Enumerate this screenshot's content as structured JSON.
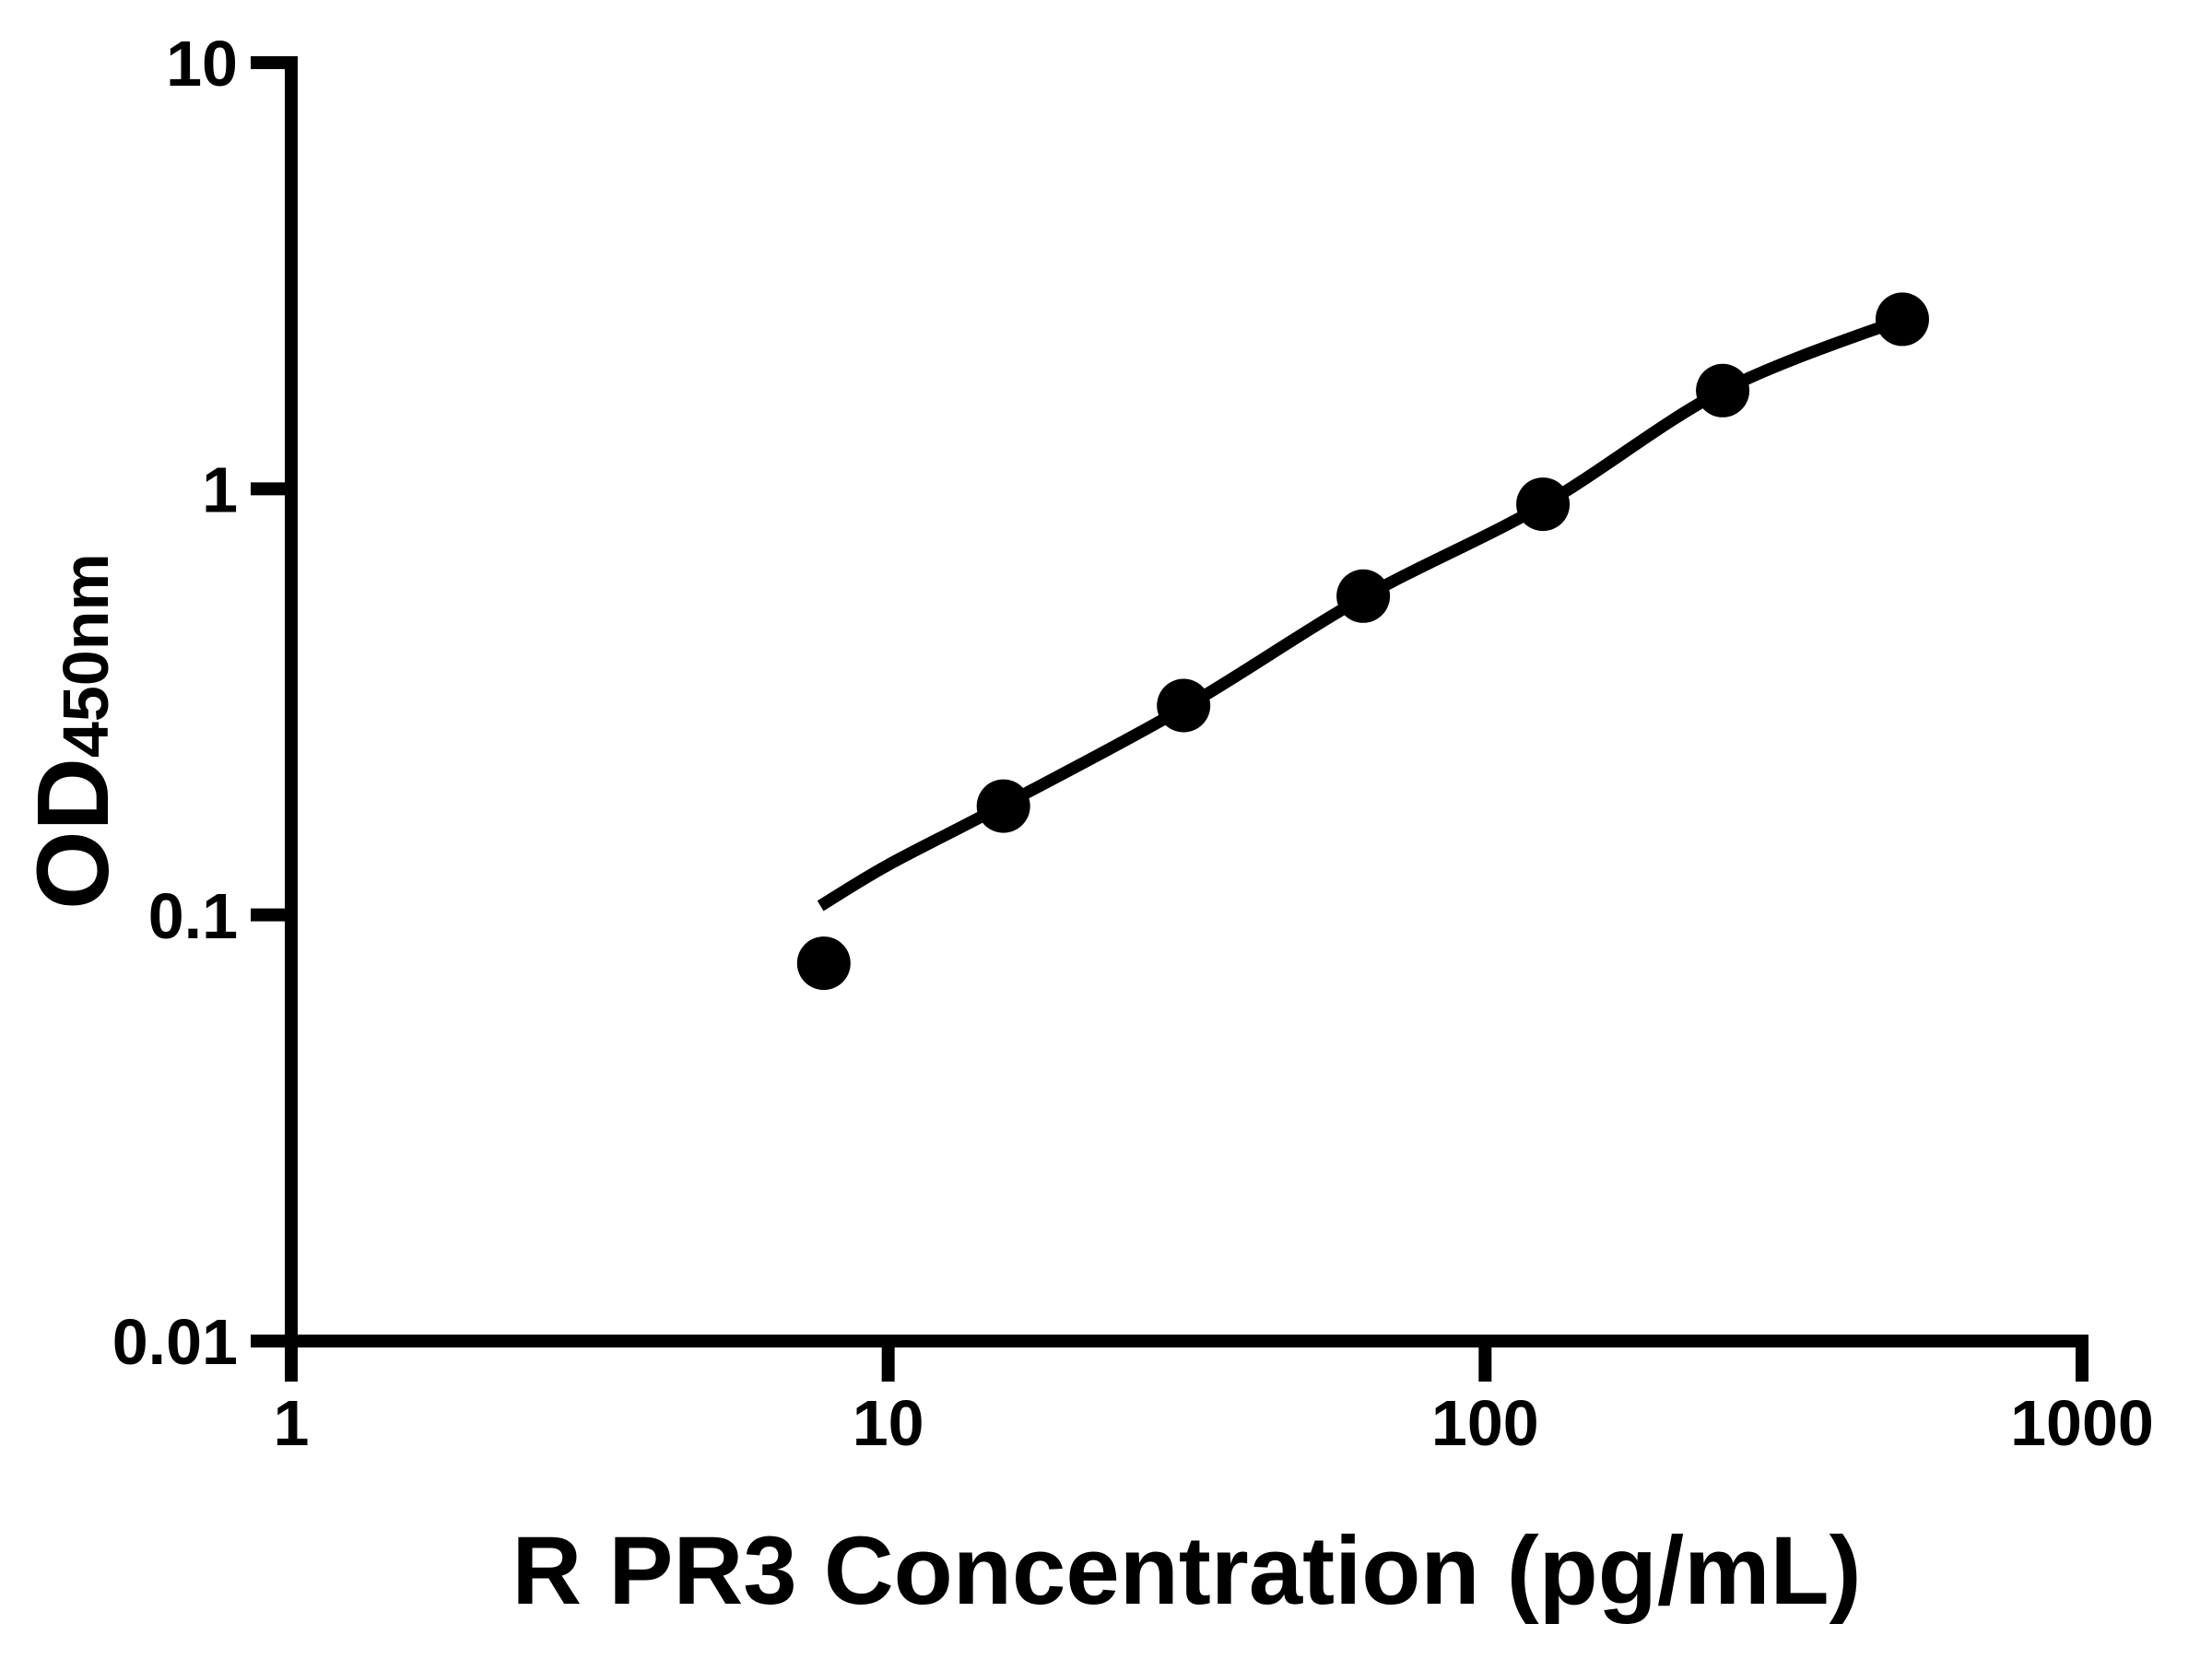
{
  "figure": {
    "background_color": "#ffffff",
    "foreground_color": "#000000"
  },
  "chart_data": {
    "type": "scatter",
    "title": "",
    "xlabel": "R PR3 Concentration (pg/mL)",
    "ylabel_main": "OD",
    "ylabel_sub": "450nm",
    "x_scale": "log",
    "y_scale": "log",
    "xlim": [
      1,
      1000
    ],
    "ylim": [
      0.01,
      10
    ],
    "x_ticks": [
      1,
      10,
      100,
      1000
    ],
    "x_tick_labels": [
      "1",
      "10",
      "100",
      "1000"
    ],
    "y_ticks": [
      0.01,
      0.1,
      1,
      10
    ],
    "y_tick_labels": [
      "0.01",
      "0.1",
      "1",
      "10"
    ],
    "grid": false,
    "legend_position": "none",
    "series": [
      {
        "name": "standard-curve-points",
        "marker": "circle",
        "color": "#000000",
        "points": [
          {
            "x": 7.8,
            "y": 0.077
          },
          {
            "x": 15.6,
            "y": 0.18
          },
          {
            "x": 31.25,
            "y": 0.31
          },
          {
            "x": 62.5,
            "y": 0.56
          },
          {
            "x": 125,
            "y": 0.92
          },
          {
            "x": 250,
            "y": 1.7
          },
          {
            "x": 500,
            "y": 2.5
          }
        ]
      }
    ],
    "fit_curve": {
      "name": "4pl-fit-line",
      "color": "#000000",
      "samples": [
        {
          "x": 7.7,
          "y": 0.105
        },
        {
          "x": 10,
          "y": 0.131
        },
        {
          "x": 15.6,
          "y": 0.181
        },
        {
          "x": 31.25,
          "y": 0.306
        },
        {
          "x": 62.5,
          "y": 0.556
        },
        {
          "x": 125,
          "y": 0.916
        },
        {
          "x": 250,
          "y": 1.7
        },
        {
          "x": 500,
          "y": 2.5
        }
      ]
    }
  }
}
